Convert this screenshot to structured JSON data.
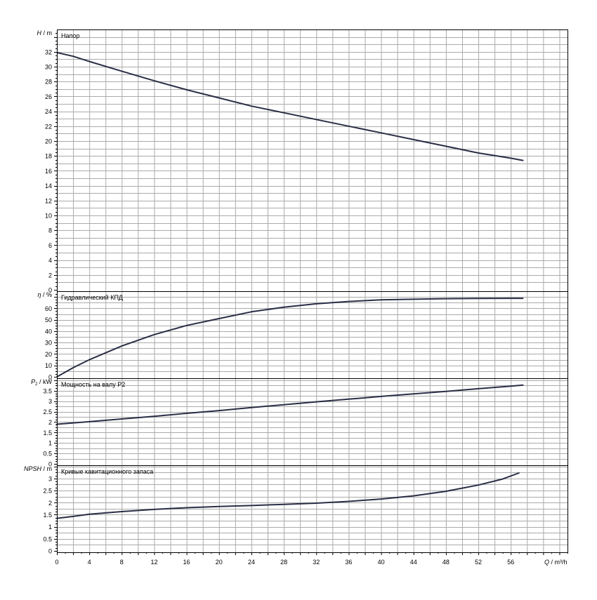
{
  "colors": {
    "grid": "#aaaaaa",
    "frame": "#000000",
    "curve": "#2a2e45",
    "background": "#ffffff"
  },
  "chart_data": [
    {
      "type": "line",
      "title": "Напор",
      "ylabel": {
        "symbol": "H",
        "unit": " / m"
      },
      "ylim": [
        0,
        35
      ],
      "yticks": [
        0,
        2,
        4,
        6,
        8,
        10,
        12,
        14,
        16,
        18,
        20,
        22,
        24,
        26,
        28,
        30,
        32
      ],
      "x": [
        0,
        2,
        4,
        8,
        12,
        16,
        20,
        24,
        28,
        32,
        36,
        40,
        44,
        48,
        52,
        56,
        57.5
      ],
      "y": [
        31.9,
        31.4,
        30.7,
        29.4,
        28.1,
        26.9,
        25.8,
        24.7,
        23.8,
        22.9,
        22.0,
        21.1,
        20.2,
        19.3,
        18.4,
        17.7,
        17.4
      ]
    },
    {
      "type": "line",
      "title": "Гидравлический КПД",
      "ylabel": {
        "symbol": "η",
        "unit": " / %"
      },
      "ylim": [
        0,
        75
      ],
      "yticks": [
        0,
        10,
        20,
        30,
        40,
        50,
        60
      ],
      "x": [
        0,
        2,
        4,
        8,
        12,
        16,
        20,
        24,
        28,
        32,
        36,
        40,
        44,
        48,
        52,
        56,
        57.5
      ],
      "y": [
        0,
        8,
        15,
        27,
        37,
        45,
        51,
        57,
        61,
        64,
        66,
        67.5,
        68,
        68.5,
        68.7,
        68.8,
        68.8
      ]
    },
    {
      "type": "line",
      "title": "Мощность на валу P2",
      "ylabel": {
        "symbol": "P",
        "sub": "2",
        "unit": " / kW"
      },
      "ylim": [
        0,
        4.1
      ],
      "yticks": [
        0,
        0.5,
        1,
        1.5,
        2,
        2.5,
        3,
        3.5
      ],
      "ytick_labels": [
        "0",
        "0.5",
        "1",
        "1.5",
        "2",
        "2.5",
        "3",
        "3.5"
      ],
      "x": [
        0,
        4,
        8,
        12,
        16,
        20,
        24,
        28,
        32,
        36,
        40,
        44,
        48,
        52,
        56,
        57.5
      ],
      "y": [
        1.9,
        2.02,
        2.15,
        2.28,
        2.42,
        2.55,
        2.7,
        2.83,
        2.97,
        3.1,
        3.23,
        3.35,
        3.47,
        3.6,
        3.72,
        3.77
      ]
    },
    {
      "type": "line",
      "title": "Кривые кавитационного запаса",
      "ylabel": {
        "symbol": "NPSH",
        "unit": " / m"
      },
      "ylim": [
        0,
        3.55
      ],
      "yticks": [
        0,
        0.5,
        1,
        1.5,
        2,
        2.5,
        3
      ],
      "ytick_labels": [
        "0",
        "0.5",
        "1",
        "1.5",
        "2",
        "2.5",
        "3"
      ],
      "x": [
        0,
        2,
        4,
        8,
        12,
        16,
        20,
        24,
        28,
        32,
        36,
        40,
        44,
        48,
        52,
        55,
        57
      ],
      "y": [
        1.35,
        1.43,
        1.52,
        1.63,
        1.72,
        1.79,
        1.84,
        1.88,
        1.93,
        1.98,
        2.05,
        2.15,
        2.28,
        2.47,
        2.73,
        2.98,
        3.23
      ]
    }
  ],
  "x_axis": {
    "label_symbol": "Q",
    "label_unit": " / m³/h",
    "xlim": [
      0,
      63
    ],
    "ticks": [
      0,
      4,
      8,
      12,
      16,
      20,
      24,
      28,
      32,
      36,
      40,
      44,
      48,
      52,
      56
    ]
  }
}
